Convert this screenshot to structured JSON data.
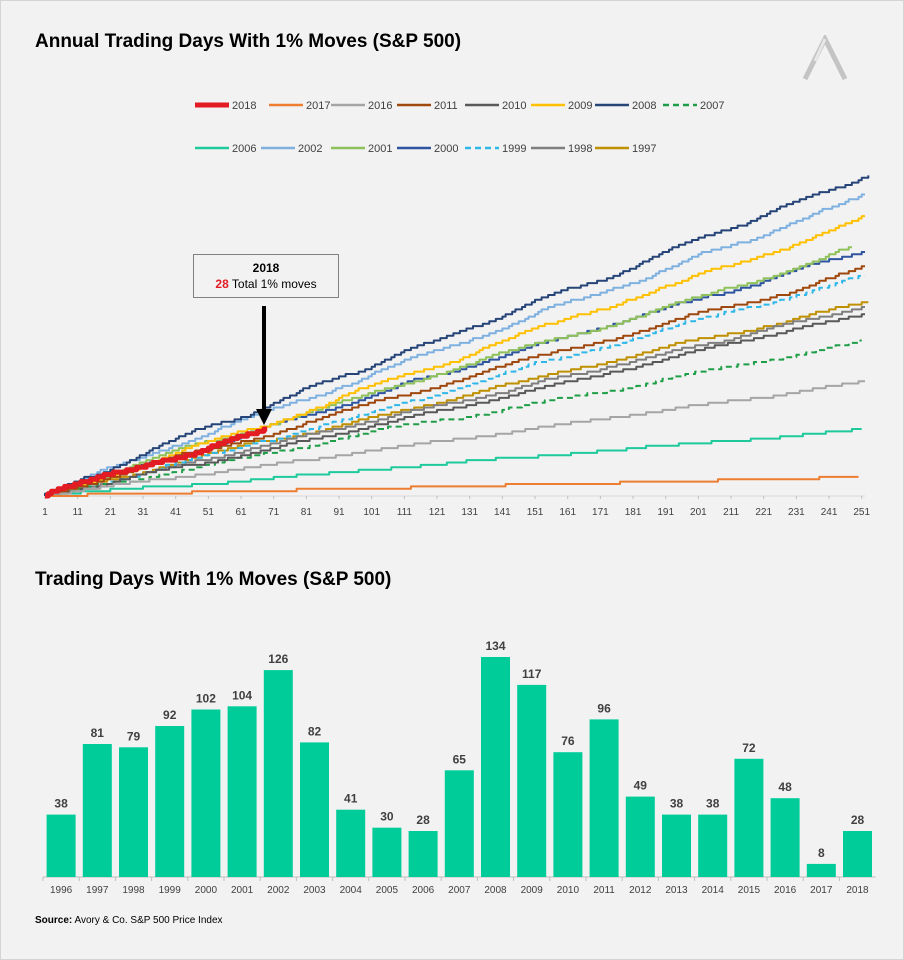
{
  "chart1": {
    "title": "Annual Trading Days With 1% Moves (S&P 500)",
    "callout": {
      "year": "2018",
      "count": "28",
      "text": "Total 1% moves"
    },
    "chart_data": {
      "type": "line",
      "title": "Annual Trading Days With 1% Moves (S&P 500)",
      "x_ticks": [
        "1",
        "11",
        "21",
        "31",
        "41",
        "51",
        "61",
        "71",
        "81",
        "91",
        "101",
        "111",
        "121",
        "131",
        "141",
        "151",
        "161",
        "171",
        "181",
        "191",
        "201",
        "211",
        "221",
        "231",
        "241",
        "251"
      ],
      "xlim": [
        1,
        252
      ],
      "ylim": [
        0,
        135
      ],
      "grid": false,
      "legend_position": "top",
      "series": [
        {
          "name": "2018",
          "color": "#e31b23",
          "dash": false,
          "width": 5,
          "days": 69,
          "total": 28
        },
        {
          "name": "2017",
          "color": "#ed7d31",
          "dash": false,
          "width": 2,
          "days": 250,
          "total": 8
        },
        {
          "name": "2016",
          "color": "#a5a5a5",
          "dash": false,
          "width": 2,
          "days": 252,
          "total": 48
        },
        {
          "name": "2011",
          "color": "#9e480e",
          "dash": false,
          "width": 2,
          "days": 252,
          "total": 96
        },
        {
          "name": "2010",
          "color": "#595959",
          "dash": false,
          "width": 2,
          "days": 252,
          "total": 76
        },
        {
          "name": "2009",
          "color": "#ffc000",
          "dash": false,
          "width": 2,
          "days": 252,
          "total": 117
        },
        {
          "name": "2008",
          "color": "#264478",
          "dash": false,
          "width": 2,
          "days": 253,
          "total": 134
        },
        {
          "name": "2007",
          "color": "#1f9e48",
          "dash": true,
          "width": 2,
          "days": 251,
          "total": 65
        },
        {
          "name": "2006",
          "color": "#1ec99b",
          "dash": false,
          "width": 2,
          "days": 251,
          "total": 28
        },
        {
          "name": "2002",
          "color": "#7fb1e0",
          "dash": false,
          "width": 2,
          "days": 252,
          "total": 126
        },
        {
          "name": "2001",
          "color": "#8fc15a",
          "dash": false,
          "width": 2,
          "days": 248,
          "total": 104
        },
        {
          "name": "2000",
          "color": "#2f55a0",
          "dash": false,
          "width": 2,
          "days": 252,
          "total": 102
        },
        {
          "name": "1999",
          "color": "#2fb7e8",
          "dash": true,
          "width": 2,
          "days": 252,
          "total": 92
        },
        {
          "name": "1998",
          "color": "#7f7f7f",
          "dash": false,
          "width": 2,
          "days": 252,
          "total": 79
        },
        {
          "name": "1997",
          "color": "#bf9000",
          "dash": false,
          "width": 2,
          "days": 253,
          "total": 81
        }
      ]
    }
  },
  "chart2": {
    "title": "Trading Days With 1% Moves (S&P 500)",
    "chart_data": {
      "type": "bar",
      "title": "Trading Days With 1% Moves (S&P 500)",
      "categories": [
        "1996",
        "1997",
        "1998",
        "1999",
        "2000",
        "2001",
        "2002",
        "2003",
        "2004",
        "2005",
        "2006",
        "2007",
        "2008",
        "2009",
        "2010",
        "2011",
        "2012",
        "2013",
        "2014",
        "2015",
        "2016",
        "2017",
        "2018"
      ],
      "values": [
        38,
        81,
        79,
        92,
        102,
        104,
        126,
        82,
        41,
        30,
        28,
        65,
        134,
        117,
        76,
        96,
        49,
        38,
        38,
        72,
        48,
        8,
        28
      ],
      "color": "#00cc99",
      "ylim": [
        0,
        134
      ]
    }
  },
  "source": {
    "label": "Source:",
    "text": " Avory & Co. S&P 500 Price Index"
  }
}
